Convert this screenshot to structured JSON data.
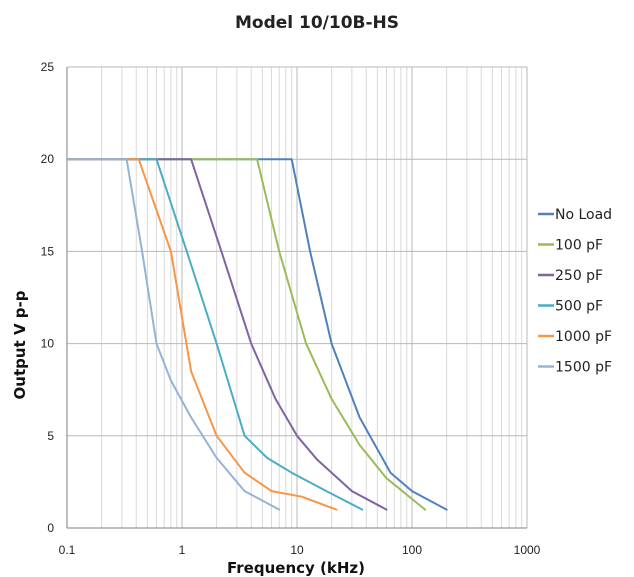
{
  "chart_data": {
    "type": "line",
    "title": "Model 10/10B-HS",
    "xlabel": "Frequency (kHz)",
    "ylabel": "Output V p-p",
    "x_scale": "log",
    "xlim": [
      0.1,
      1000
    ],
    "ylim": [
      0,
      25
    ],
    "x_ticks": [
      "0.1",
      "1",
      "10",
      "100",
      "1000"
    ],
    "y_ticks": [
      "0",
      "5",
      "10",
      "15",
      "20",
      "25"
    ],
    "grid": true,
    "legend_position": "right",
    "series": [
      {
        "name": "No Load",
        "color": "#4f81bd",
        "points": [
          [
            0.1,
            20
          ],
          [
            9,
            20
          ],
          [
            13,
            15
          ],
          [
            20,
            10
          ],
          [
            35,
            6
          ],
          [
            65,
            3
          ],
          [
            100,
            2
          ],
          [
            200,
            1
          ]
        ]
      },
      {
        "name": "100 pF",
        "color": "#9bbb59",
        "points": [
          [
            0.1,
            20
          ],
          [
            4.5,
            20
          ],
          [
            7,
            15
          ],
          [
            12,
            10
          ],
          [
            20,
            7
          ],
          [
            35,
            4.5
          ],
          [
            60,
            2.7
          ],
          [
            130,
            1
          ]
        ]
      },
      {
        "name": "250 pF",
        "color": "#8064a2",
        "points": [
          [
            0.1,
            20
          ],
          [
            1.2,
            20
          ],
          [
            2.2,
            15
          ],
          [
            4,
            10
          ],
          [
            6.5,
            7
          ],
          [
            10,
            5
          ],
          [
            15,
            3.7
          ],
          [
            30,
            2
          ],
          [
            60,
            1
          ]
        ]
      },
      {
        "name": "500 pF",
        "color": "#4bacc6",
        "points": [
          [
            0.1,
            20
          ],
          [
            0.6,
            20
          ],
          [
            1.1,
            15
          ],
          [
            2,
            10
          ],
          [
            3.5,
            5
          ],
          [
            5.5,
            3.8
          ],
          [
            9,
            3
          ],
          [
            18,
            2
          ],
          [
            37,
            1
          ]
        ]
      },
      {
        "name": "1000 pF",
        "color": "#f79646",
        "points": [
          [
            0.1,
            20
          ],
          [
            0.42,
            20
          ],
          [
            0.8,
            15
          ],
          [
            1.2,
            8.5
          ],
          [
            2,
            5
          ],
          [
            3.5,
            3
          ],
          [
            6,
            2
          ],
          [
            11,
            1.7
          ],
          [
            22,
            1
          ]
        ]
      },
      {
        "name": "1500 pF",
        "color": "#95b3d7",
        "points": [
          [
            0.1,
            20
          ],
          [
            0.33,
            20
          ],
          [
            0.45,
            15
          ],
          [
            0.6,
            10
          ],
          [
            0.8,
            8
          ],
          [
            1.2,
            6
          ],
          [
            2,
            3.8
          ],
          [
            3.5,
            2
          ],
          [
            7,
            1
          ]
        ]
      }
    ]
  }
}
